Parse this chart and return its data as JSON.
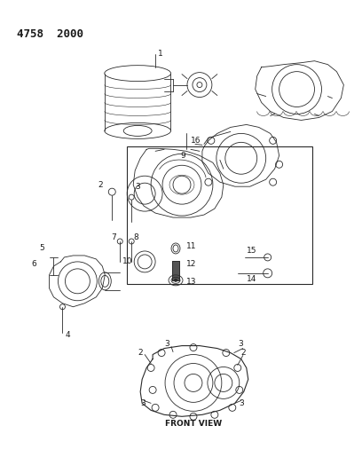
{
  "title_text": "4758  2000",
  "background_color": "#ffffff",
  "line_color": "#2a2a2a",
  "label_color": "#1a1a1a",
  "label_fontsize": 6.5,
  "fig_width": 4.08,
  "fig_height": 5.33,
  "dpi": 100,
  "front_view_label": "FRONT VIEW"
}
